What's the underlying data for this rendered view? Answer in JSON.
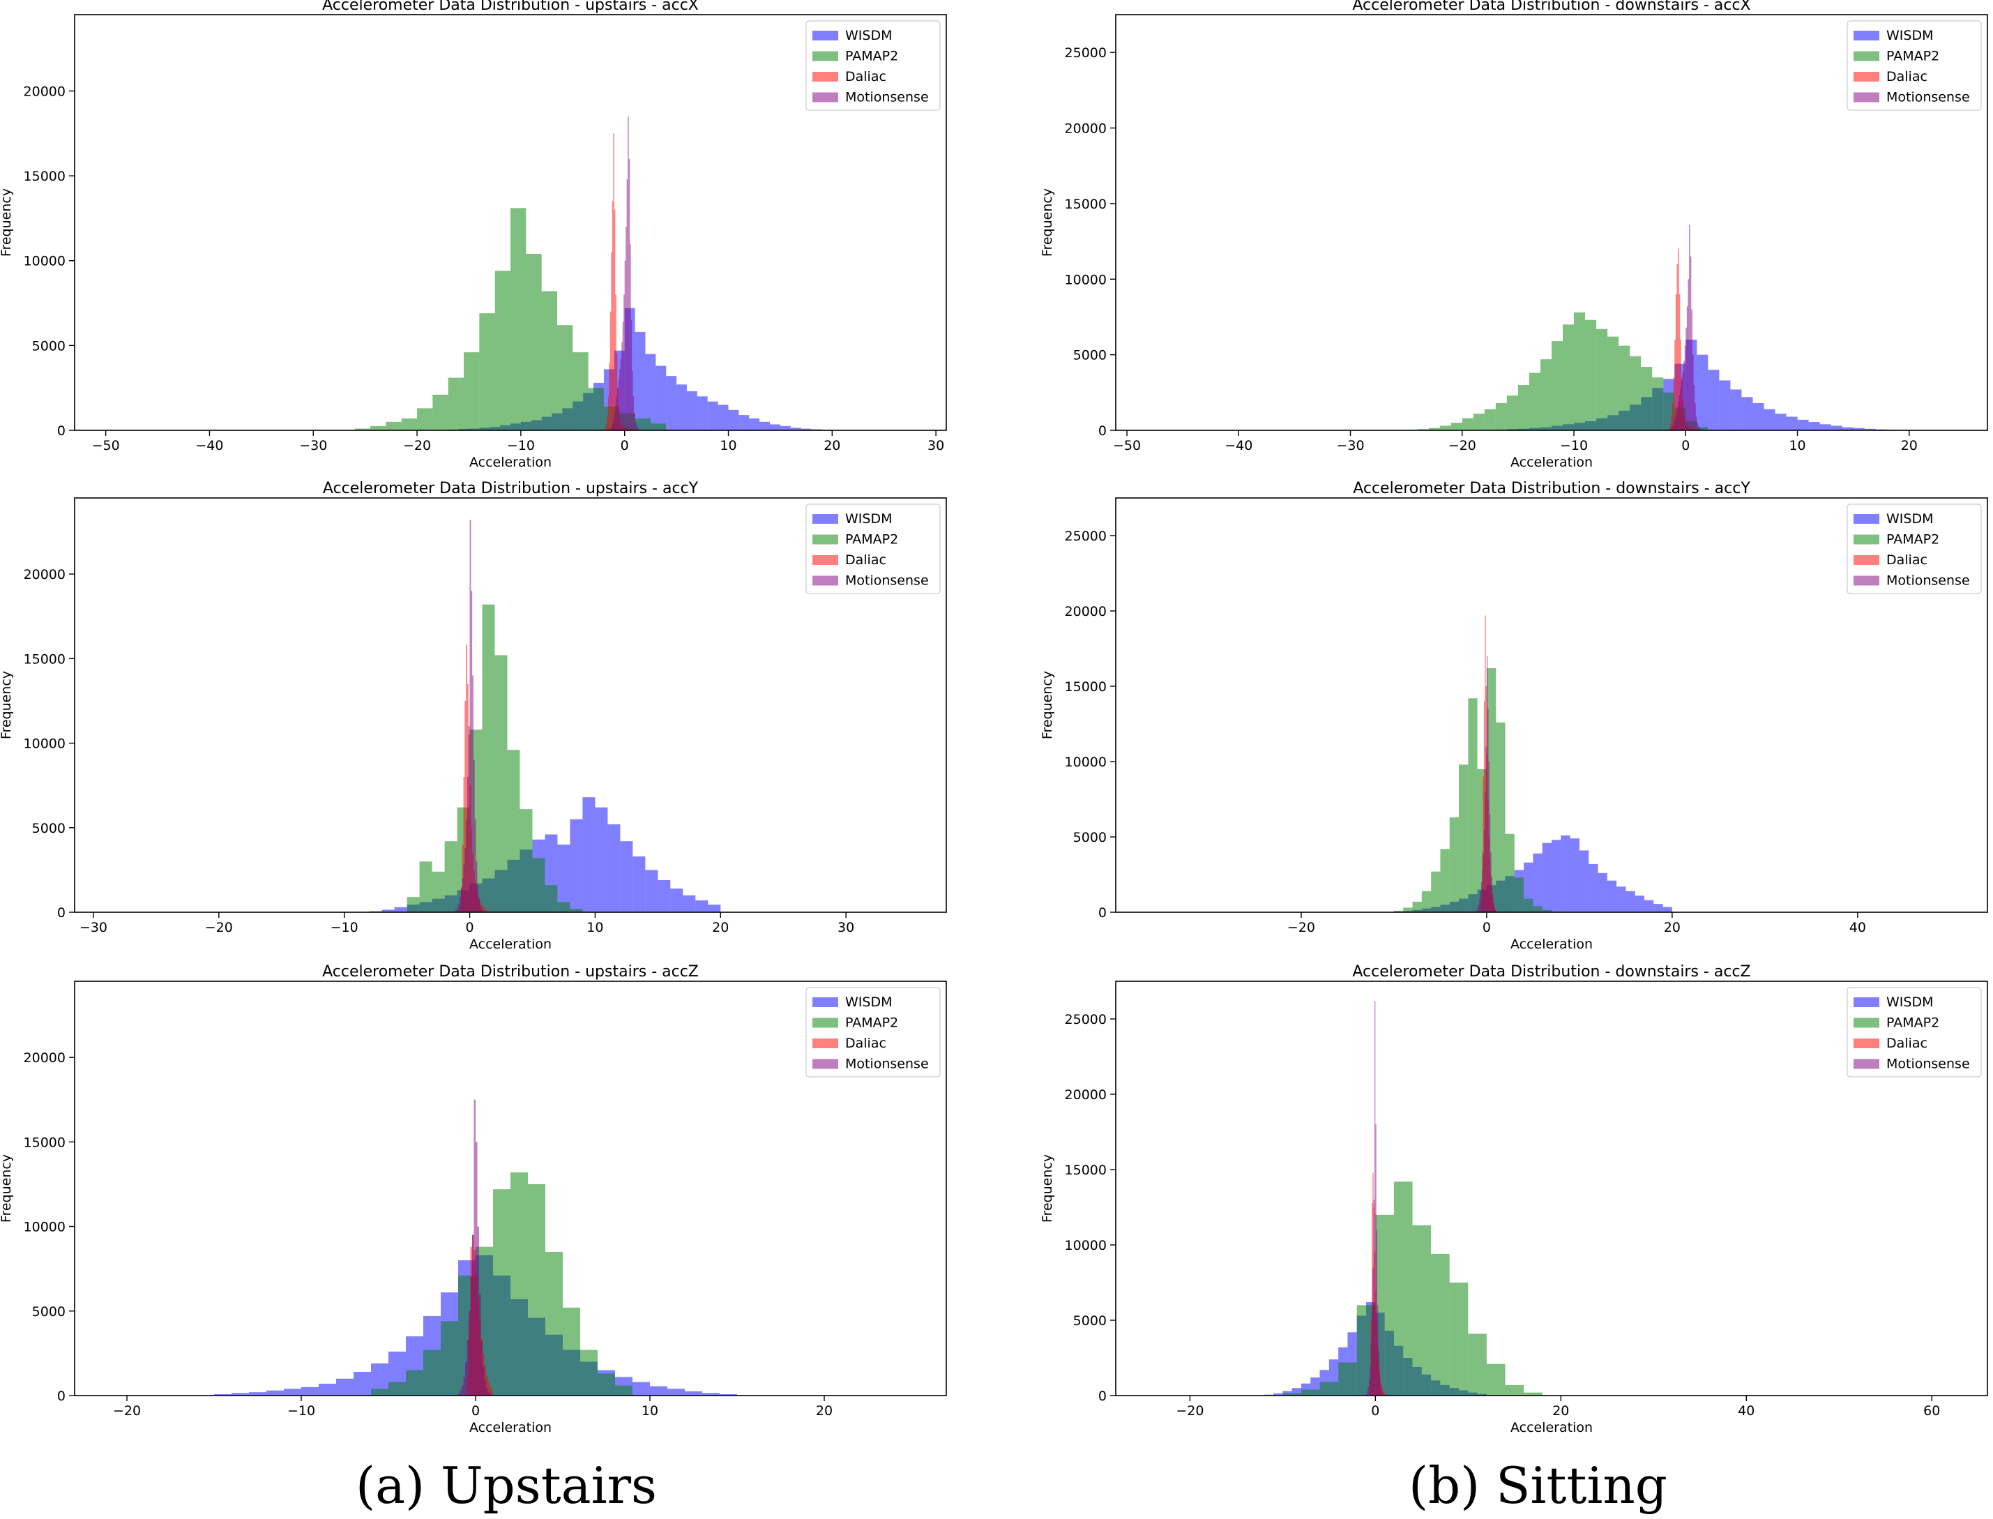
{
  "colors": {
    "WISDM": "#0000ff",
    "PAMAP2": "#008000",
    "Daliac": "#ff0000",
    "Motionsense": "#800080"
  },
  "legend_position": "upper right",
  "captions": {
    "a": "(a) Upstairs",
    "b": "(b) Sitting"
  },
  "chart_data": [
    {
      "type": "histogram",
      "title": "Accelerometer Data Distribution - upstairs - accX",
      "xlabel": "Acceleration",
      "ylabel": "Frequency",
      "xlim": [
        -53,
        31
      ],
      "ylim": [
        0,
        24500
      ],
      "xticks": [
        -50,
        -40,
        -30,
        -20,
        -10,
        0,
        10,
        20,
        30
      ],
      "yticks": [
        0,
        5000,
        10000,
        15000,
        20000
      ],
      "series": [
        {
          "name": "WISDM",
          "range": [
            -20,
            20
          ],
          "bins": 40,
          "values": [
            5,
            10,
            20,
            40,
            80,
            100,
            150,
            200,
            300,
            400,
            500,
            600,
            800,
            1000,
            1300,
            1700,
            2200,
            2800,
            3600,
            4700,
            7200,
            5800,
            4500,
            3800,
            3200,
            2700,
            2300,
            2000,
            1700,
            1500,
            1200,
            900,
            700,
            500,
            350,
            250,
            150,
            100,
            60,
            30
          ]
        },
        {
          "name": "PAMAP2",
          "range": [
            -26,
            4
          ],
          "bins": 20,
          "values": [
            100,
            250,
            500,
            700,
            1300,
            2100,
            3100,
            4600,
            6900,
            9400,
            13100,
            10400,
            8200,
            6200,
            4600,
            2500,
            1400,
            1000,
            700,
            400
          ]
        },
        {
          "name": "Daliac",
          "range": [
            -2,
            1
          ],
          "bins": 30,
          "values": [
            50,
            150,
            400,
            900,
            2000,
            4000,
            7000,
            10500,
            13500,
            17500,
            13000,
            8000,
            4500,
            2500,
            1200,
            700,
            400,
            300,
            250,
            200,
            180,
            160,
            140,
            120,
            100,
            80,
            60,
            40,
            30,
            20
          ]
        },
        {
          "name": "Motionsense",
          "range": [
            -1.5,
            1.5
          ],
          "bins": 30,
          "values": [
            50,
            100,
            200,
            400,
            700,
            1100,
            1500,
            2000,
            2500,
            3000,
            3600,
            4200,
            5200,
            6400,
            8000,
            10000,
            12000,
            14800,
            18500,
            16000,
            11000,
            6500,
            3500,
            2000,
            1000,
            500,
            300,
            150,
            80,
            40
          ]
        }
      ]
    },
    {
      "type": "histogram",
      "title": "Accelerometer Data Distribution - downstairs - accX",
      "xlabel": "Acceleration",
      "ylabel": "Frequency",
      "xlim": [
        -51,
        27
      ],
      "ylim": [
        0,
        27500
      ],
      "xticks": [
        -50,
        -40,
        -30,
        -20,
        -10,
        0,
        10,
        20
      ],
      "yticks": [
        0,
        5000,
        10000,
        15000,
        20000,
        25000
      ],
      "series": [
        {
          "name": "WISDM",
          "range": [
            -20,
            20
          ],
          "bins": 40,
          "values": [
            5,
            10,
            20,
            40,
            80,
            100,
            150,
            200,
            300,
            400,
            500,
            600,
            800,
            1000,
            1300,
            1700,
            2200,
            2800,
            3400,
            4400,
            6000,
            5000,
            4000,
            3300,
            2700,
            2200,
            1800,
            1400,
            1100,
            900,
            700,
            550,
            400,
            300,
            200,
            150,
            100,
            60,
            40,
            20
          ]
        },
        {
          "name": "PAMAP2",
          "range": [
            -24,
            2
          ],
          "bins": 26,
          "values": [
            80,
            150,
            300,
            500,
            800,
            1100,
            1400,
            1800,
            2300,
            3000,
            3800,
            4700,
            5900,
            7000,
            7800,
            7300,
            6700,
            6200,
            5600,
            4900,
            4200,
            3500,
            2500,
            1500,
            600,
            200
          ]
        },
        {
          "name": "Daliac",
          "range": [
            -1.6,
            1.4
          ],
          "bins": 30,
          "values": [
            50,
            150,
            400,
            900,
            1800,
            3500,
            6000,
            9000,
            11000,
            12000,
            9000,
            6000,
            3500,
            2000,
            1000,
            600,
            400,
            300,
            250,
            200,
            180,
            160,
            140,
            120,
            100,
            80,
            60,
            40,
            30,
            20
          ]
        },
        {
          "name": "Motionsense",
          "range": [
            -1.5,
            1.5
          ],
          "bins": 30,
          "values": [
            50,
            100,
            200,
            300,
            500,
            800,
            1100,
            1500,
            1900,
            2300,
            2800,
            3300,
            3900,
            4600,
            5600,
            6800,
            8200,
            10000,
            13600,
            11500,
            8000,
            5000,
            3000,
            1800,
            900,
            500,
            300,
            150,
            80,
            40
          ]
        }
      ]
    },
    {
      "type": "histogram",
      "title": "Accelerometer Data Distribution - upstairs - accY",
      "xlabel": "Acceleration",
      "ylabel": "Frequency",
      "xlim": [
        -31.5,
        38
      ],
      "ylim": [
        0,
        24500
      ],
      "xticks": [
        -30,
        -20,
        -10,
        0,
        10,
        20,
        30
      ],
      "yticks": [
        0,
        5000,
        10000,
        15000,
        20000
      ],
      "series": [
        {
          "name": "WISDM",
          "range": [
            -8,
            20
          ],
          "bins": 28,
          "values": [
            60,
            150,
            300,
            450,
            600,
            800,
            1000,
            1300,
            1700,
            2000,
            2500,
            3100,
            3700,
            4300,
            4600,
            4000,
            5500,
            6800,
            6200,
            5200,
            4200,
            3300,
            2500,
            1900,
            1400,
            1000,
            700,
            450
          ]
        },
        {
          "name": "PAMAP2",
          "range": [
            -5,
            9
          ],
          "bins": 14,
          "values": [
            900,
            3000,
            2400,
            4200,
            6200,
            10800,
            18200,
            15200,
            9600,
            6100,
            3200,
            1600,
            600,
            200
          ]
        },
        {
          "name": "Daliac",
          "range": [
            -0.8,
            1.5
          ],
          "bins": 23,
          "values": [
            300,
            1500,
            4000,
            8000,
            12500,
            15800,
            13500,
            10500,
            7500,
            5000,
            3500,
            2500,
            1800,
            1300,
            1000,
            800,
            600,
            450,
            350,
            250,
            180,
            120,
            80
          ]
        },
        {
          "name": "Motionsense",
          "range": [
            -1.2,
            1.2
          ],
          "bins": 24,
          "values": [
            80,
            150,
            300,
            500,
            900,
            1400,
            2000,
            2800,
            3800,
            5500,
            8000,
            11000,
            23200,
            19000,
            14000,
            9000,
            5500,
            3000,
            1600,
            800,
            400,
            200,
            100,
            50
          ]
        }
      ]
    },
    {
      "type": "histogram",
      "title": "Accelerometer Data Distribution - downstairs - accY",
      "xlabel": "Acceleration",
      "ylabel": "Frequency",
      "xlim": [
        -40,
        54
      ],
      "ylim": [
        0,
        27500
      ],
      "xticks": [
        -20,
        0,
        20,
        40
      ],
      "yticks": [
        0,
        5000,
        10000,
        15000,
        20000,
        25000
      ],
      "series": [
        {
          "name": "WISDM",
          "range": [
            -10,
            20
          ],
          "bins": 30,
          "values": [
            30,
            80,
            150,
            250,
            350,
            500,
            700,
            900,
            1200,
            1500,
            1800,
            2100,
            2400,
            2800,
            3300,
            3900,
            4600,
            4800,
            5100,
            4900,
            4100,
            3200,
            2600,
            2100,
            1700,
            1400,
            1100,
            800,
            550,
            350
          ]
        },
        {
          "name": "PAMAP2",
          "range": [
            -10,
            8
          ],
          "bins": 18,
          "values": [
            100,
            300,
            700,
            1400,
            2700,
            4200,
            6300,
            9800,
            14200,
            9500,
            16200,
            12600,
            5200,
            2300,
            900,
            400,
            150,
            50
          ]
        },
        {
          "name": "Daliac",
          "range": [
            -0.6,
            1.0
          ],
          "bins": 16,
          "values": [
            800,
            4000,
            9000,
            14000,
            19700,
            15000,
            10500,
            7500,
            5000,
            3500,
            2500,
            1600,
            1000,
            600,
            350,
            200
          ]
        },
        {
          "name": "Motionsense",
          "range": [
            -1.2,
            1.2
          ],
          "bins": 24,
          "values": [
            80,
            150,
            300,
            500,
            900,
            1400,
            2000,
            2800,
            3800,
            5500,
            8000,
            11000,
            17000,
            13500,
            10000,
            6500,
            4000,
            2300,
            1200,
            600,
            300,
            150,
            80,
            40
          ]
        }
      ]
    },
    {
      "type": "histogram",
      "title": "Accelerometer Data Distribution - upstairs - accZ",
      "xlabel": "Acceleration",
      "ylabel": "Frequency",
      "xlim": [
        -23,
        27
      ],
      "ylim": [
        0,
        24500
      ],
      "xticks": [
        -20,
        -10,
        0,
        10,
        20
      ],
      "yticks": [
        0,
        5000,
        10000,
        15000,
        20000
      ],
      "series": [
        {
          "name": "WISDM",
          "range": [
            -15,
            15
          ],
          "bins": 30,
          "values": [
            80,
            150,
            200,
            300,
            400,
            500,
            700,
            1000,
            1400,
            1900,
            2600,
            3500,
            4700,
            6100,
            8000,
            8300,
            7100,
            5700,
            4600,
            3600,
            2700,
            2000,
            1500,
            1100,
            800,
            550,
            400,
            250,
            150,
            80
          ]
        },
        {
          "name": "PAMAP2",
          "range": [
            -6,
            9
          ],
          "bins": 15,
          "values": [
            400,
            800,
            1500,
            2700,
            4400,
            7100,
            8800,
            12200,
            13200,
            12500,
            8500,
            5200,
            2700,
            1300,
            600
          ]
        },
        {
          "name": "Daliac",
          "range": [
            -0.5,
            1.0
          ],
          "bins": 15,
          "values": [
            1200,
            4500,
            8800,
            9500,
            8600,
            7200,
            5800,
            4500,
            3400,
            2500,
            1800,
            1200,
            800,
            500,
            300
          ]
        },
        {
          "name": "Motionsense",
          "range": [
            -1,
            1
          ],
          "bins": 20,
          "values": [
            100,
            300,
            600,
            1100,
            2000,
            3300,
            5000,
            7000,
            9500,
            17500,
            15000,
            10000,
            6000,
            3200,
            1700,
            900,
            450,
            200,
            100,
            50
          ]
        }
      ]
    },
    {
      "type": "histogram",
      "title": "Accelerometer Data Distribution - downstairs - accZ",
      "xlabel": "Acceleration",
      "ylabel": "Frequency",
      "xlim": [
        -28,
        66
      ],
      "ylim": [
        0,
        27500
      ],
      "xticks": [
        -20,
        0,
        20,
        40,
        60
      ],
      "yticks": [
        0,
        5000,
        10000,
        15000,
        20000,
        25000
      ],
      "series": [
        {
          "name": "WISDM",
          "range": [
            -12,
            12
          ],
          "bins": 24,
          "values": [
            60,
            150,
            300,
            500,
            800,
            1200,
            1700,
            2400,
            3200,
            4200,
            5300,
            6200,
            5500,
            4300,
            3300,
            2500,
            1900,
            1400,
            1000,
            700,
            500,
            350,
            200,
            100
          ]
        },
        {
          "name": "PAMAP2",
          "range": [
            -10,
            18
          ],
          "bins": 14,
          "values": [
            150,
            400,
            900,
            2200,
            6000,
            12000,
            14200,
            11300,
            9400,
            7500,
            4100,
            2100,
            700,
            200
          ]
        },
        {
          "name": "Daliac",
          "range": [
            -0.6,
            1.2
          ],
          "bins": 18,
          "values": [
            1000,
            5000,
            12800,
            14800,
            12500,
            9500,
            7000,
            5000,
            3500,
            2500,
            1800,
            1200,
            800,
            500,
            300,
            200,
            120,
            60
          ]
        },
        {
          "name": "Motionsense",
          "range": [
            -1,
            1
          ],
          "bins": 20,
          "values": [
            100,
            300,
            600,
            1100,
            2000,
            3500,
            5500,
            8500,
            13000,
            26200,
            18000,
            11000,
            6000,
            3000,
            1500,
            700,
            350,
            150,
            80,
            40
          ]
        }
      ]
    }
  ]
}
